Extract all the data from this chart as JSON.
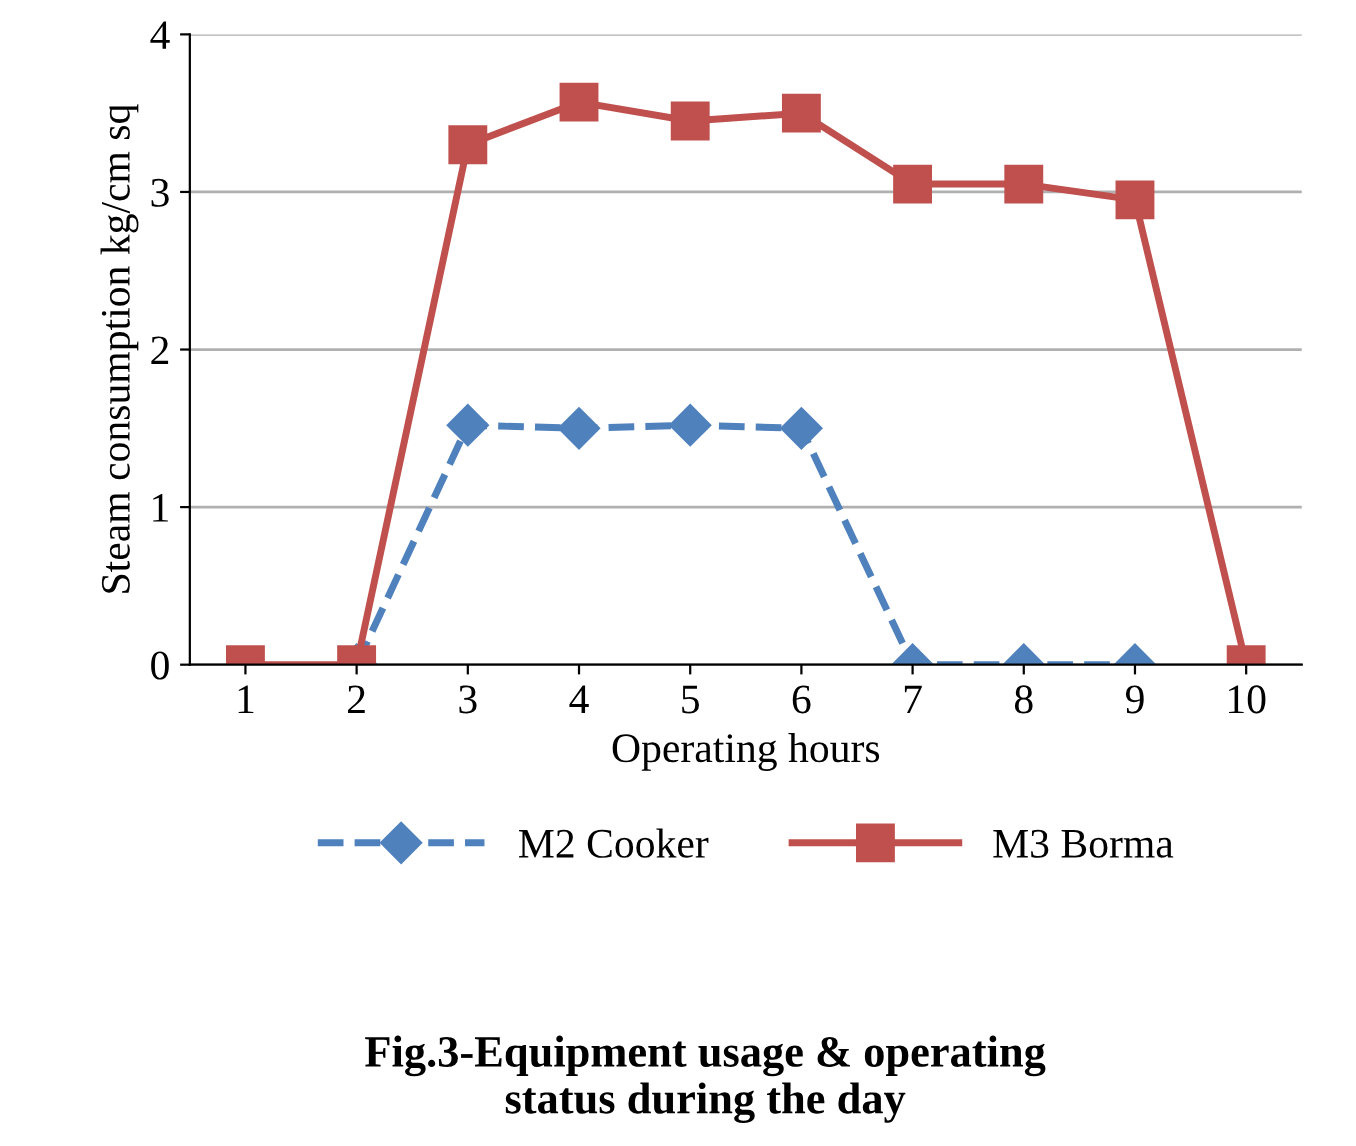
{
  "chart_data": {
    "type": "line",
    "title": "Fig.3-Equipment usage & operating\nstatus during the day",
    "xlabel": "Operating hours",
    "ylabel": "Steam consumption kg/cm sq",
    "categories": [
      "1",
      "2",
      "3",
      "4",
      "5",
      "6",
      "7",
      "8",
      "9",
      "10"
    ],
    "series": [
      {
        "name": "M2 Cooker",
        "color": "#4f81bd",
        "marker": "diamond",
        "line_style": "dashed",
        "values": [
          null,
          0,
          1.52,
          1.5,
          1.52,
          1.5,
          0,
          0,
          0,
          null
        ]
      },
      {
        "name": "M3 Borma",
        "color": "#c0504d",
        "marker": "square",
        "line_style": "solid",
        "values": [
          0,
          0,
          3.3,
          3.57,
          3.45,
          3.5,
          3.05,
          3.05,
          2.95,
          0
        ]
      }
    ],
    "ylim": [
      0,
      4
    ],
    "yticks": [
      0,
      1,
      2,
      3,
      4
    ],
    "grid": "y",
    "legend": "bottom"
  }
}
